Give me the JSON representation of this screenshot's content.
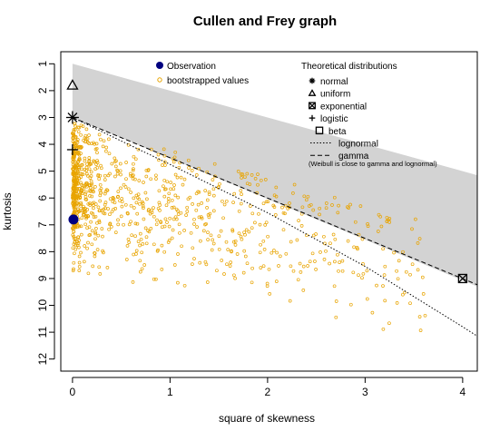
{
  "chart_data": {
    "type": "scatter",
    "title": "Cullen and Frey graph",
    "xlabel": "square of skewness",
    "ylabel": "kurtosis",
    "xlim": [
      -0.12,
      4.15
    ],
    "ylim": [
      0.55,
      12.45
    ],
    "y_reversed": true,
    "x_ticks": [
      0,
      1,
      2,
      3,
      4
    ],
    "y_ticks": [
      1,
      2,
      3,
      4,
      5,
      6,
      7,
      8,
      9,
      10,
      11,
      12
    ],
    "beta_region": {
      "label": "beta",
      "color": "#d3d3d3",
      "upper_boundary": [
        [
          0,
          1
        ],
        [
          4.15,
          5.15
        ]
      ],
      "lower_boundary": [
        [
          0,
          3
        ],
        [
          4.15,
          9.3
        ]
      ]
    },
    "lines": [
      {
        "name": "lognormal",
        "style": "dotted",
        "points": [
          [
            0,
            3.0
          ],
          [
            1,
            4.75
          ],
          [
            2,
            6.55
          ],
          [
            3,
            8.55
          ],
          [
            4,
            10.8
          ],
          [
            4.15,
            11.15
          ]
        ]
      },
      {
        "name": "gamma",
        "style": "dashed",
        "points": [
          [
            0,
            3.0
          ],
          [
            4.15,
            9.23
          ]
        ]
      }
    ],
    "theoretical_points": [
      {
        "name": "normal",
        "symbol": "asterisk",
        "x": 0,
        "y": 3.0
      },
      {
        "name": "uniform",
        "symbol": "triangle",
        "x": 0,
        "y": 1.8
      },
      {
        "name": "exponential",
        "symbol": "boxed-x",
        "x": 4,
        "y": 9.0
      },
      {
        "name": "logistic",
        "symbol": "plus",
        "x": 0,
        "y": 4.2
      }
    ],
    "observation": {
      "name": "Observation",
      "x": 0.01,
      "y": 6.8,
      "color": "#00007f"
    },
    "bootstrap": {
      "name": "bootstrapped values",
      "color": "#e8a400",
      "stroke": "#b8a000",
      "count": 1000
    },
    "legend_left": {
      "position": "top-center",
      "items": [
        {
          "label": "Observation",
          "symbol": "filled-circle"
        },
        {
          "label": "bootstrapped values",
          "symbol": "open-circle"
        }
      ]
    },
    "legend_right": {
      "position": "top-right",
      "title": "Theoretical distributions",
      "items": [
        {
          "label": "normal",
          "symbol": "asterisk"
        },
        {
          "label": "uniform",
          "symbol": "triangle"
        },
        {
          "label": "exponential",
          "symbol": "boxed-x"
        },
        {
          "label": "logistic",
          "symbol": "plus"
        },
        {
          "label": "beta",
          "symbol": "square"
        },
        {
          "label": "lognormal",
          "symbol": "dotted-line"
        },
        {
          "label": "gamma",
          "symbol": "dashed-line"
        }
      ],
      "note": "(Weibull is close to gamma and lognormal)"
    }
  }
}
